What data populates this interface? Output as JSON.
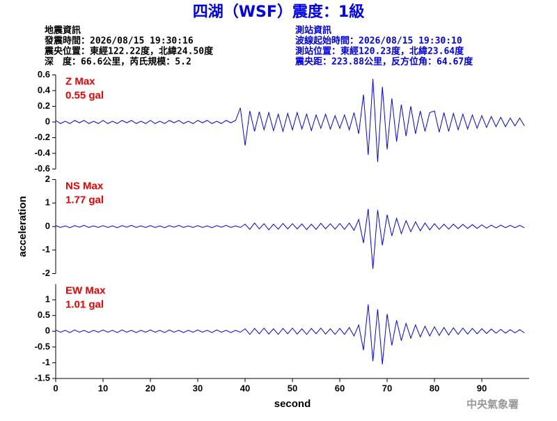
{
  "header": {
    "title": "四湖（WSF）震度：1級",
    "left": [
      "地震資訊",
      "發震時間：2026/08/15 19:30:16",
      "震央位置：東經122.22度，北緯24.50度",
      "深　度：66.6公里，芮氏規模：5.2"
    ],
    "right": [
      "測站資訊",
      "波線起始時間：2026/08/15 19:30:10",
      "測站位置：東經120.23度，北緯23.64度",
      "震央距：223.88公里，反方位角：64.67度"
    ]
  },
  "footer": "中央氣象署",
  "chart_data": [
    {
      "type": "line",
      "color": "#0000ff",
      "annotations": [
        "Z Max",
        "0.55 gal"
      ],
      "annotation_color": "#ee0000",
      "xlim": [
        0,
        100
      ],
      "ylim": [
        -0.6,
        0.6
      ],
      "yticks": [
        -0.6,
        -0.4,
        -0.2,
        0,
        0.2,
        0.4,
        0.6
      ],
      "x": [
        0,
        1,
        2,
        3,
        4,
        5,
        6,
        7,
        8,
        9,
        10,
        11,
        12,
        13,
        14,
        15,
        16,
        17,
        18,
        19,
        20,
        21,
        22,
        23,
        24,
        25,
        26,
        27,
        28,
        29,
        30,
        31,
        32,
        33,
        34,
        35,
        36,
        37,
        38,
        39,
        40,
        41,
        42,
        43,
        44,
        45,
        46,
        47,
        48,
        49,
        50,
        51,
        52,
        53,
        54,
        55,
        56,
        57,
        58,
        59,
        60,
        61,
        62,
        63,
        64,
        65,
        66,
        67,
        68,
        69,
        70,
        71,
        72,
        73,
        74,
        75,
        76,
        77,
        78,
        79,
        80,
        81,
        82,
        83,
        84,
        85,
        86,
        87,
        88,
        89,
        90,
        91,
        92,
        93,
        94,
        95,
        96,
        97,
        98,
        99
      ],
      "values": [
        0.02,
        -0.02,
        0.01,
        -0.02,
        0.02,
        -0.01,
        0.02,
        -0.02,
        0.01,
        -0.02,
        0.02,
        -0.02,
        0.01,
        -0.02,
        0.02,
        -0.01,
        0.02,
        -0.02,
        0.01,
        -0.02,
        0.02,
        -0.02,
        0.01,
        -0.02,
        0.02,
        -0.01,
        0.02,
        -0.02,
        0.01,
        -0.02,
        0.02,
        -0.01,
        0.02,
        -0.02,
        0.01,
        -0.02,
        0.02,
        -0.01,
        0.02,
        0.18,
        -0.3,
        0.14,
        -0.12,
        0.13,
        -0.1,
        0.12,
        -0.11,
        0.1,
        -0.12,
        0.11,
        -0.1,
        0.12,
        -0.09,
        0.1,
        -0.11,
        0.09,
        -0.08,
        0.1,
        -0.09,
        0.08,
        -0.08,
        0.09,
        -0.1,
        0.12,
        -0.15,
        0.35,
        -0.42,
        0.55,
        -0.51,
        0.45,
        -0.35,
        0.3,
        -0.25,
        0.22,
        -0.18,
        0.2,
        -0.15,
        0.14,
        -0.12,
        0.12,
        0.14,
        -0.13,
        0.12,
        -0.12,
        0.11,
        -0.1,
        0.1,
        -0.09,
        0.09,
        -0.08,
        0.08,
        -0.07,
        0.07,
        -0.06,
        0.06,
        -0.06,
        0.05,
        -0.05,
        0.05,
        -0.05
      ]
    },
    {
      "type": "line",
      "color": "#0000ff",
      "annotations": [
        "NS Max",
        "1.77 gal"
      ],
      "annotation_color": "#ee0000",
      "ylabel": "acceleration",
      "xlim": [
        0,
        100
      ],
      "ylim": [
        -2,
        2
      ],
      "yticks": [
        -2,
        -1,
        0,
        1,
        2
      ],
      "x": [
        0,
        1,
        2,
        3,
        4,
        5,
        6,
        7,
        8,
        9,
        10,
        11,
        12,
        13,
        14,
        15,
        16,
        17,
        18,
        19,
        20,
        21,
        22,
        23,
        24,
        25,
        26,
        27,
        28,
        29,
        30,
        31,
        32,
        33,
        34,
        35,
        36,
        37,
        38,
        39,
        40,
        41,
        42,
        43,
        44,
        45,
        46,
        47,
        48,
        49,
        50,
        51,
        52,
        53,
        54,
        55,
        56,
        57,
        58,
        59,
        60,
        61,
        62,
        63,
        64,
        65,
        66,
        67,
        68,
        69,
        70,
        71,
        72,
        73,
        74,
        75,
        76,
        77,
        78,
        79,
        80,
        81,
        82,
        83,
        84,
        85,
        86,
        87,
        88,
        89,
        90,
        91,
        92,
        93,
        94,
        95,
        96,
        97,
        98,
        99
      ],
      "values": [
        0.04,
        -0.04,
        0.03,
        -0.05,
        0.04,
        -0.03,
        0.05,
        -0.04,
        0.03,
        -0.04,
        0.04,
        -0.04,
        0.03,
        -0.05,
        0.04,
        -0.03,
        0.05,
        -0.04,
        0.03,
        -0.04,
        0.04,
        -0.04,
        0.03,
        -0.05,
        0.04,
        -0.03,
        0.05,
        -0.04,
        0.03,
        -0.04,
        0.04,
        -0.04,
        0.03,
        -0.05,
        0.04,
        -0.03,
        0.05,
        -0.04,
        0.03,
        -0.04,
        0.1,
        -0.12,
        0.15,
        -0.1,
        0.12,
        -0.14,
        0.1,
        -0.11,
        0.13,
        -0.1,
        0.12,
        -0.1,
        0.11,
        -0.13,
        0.1,
        -0.12,
        0.14,
        -0.1,
        0.12,
        -0.11,
        0.13,
        -0.12,
        0.15,
        -0.16,
        0.3,
        -0.7,
        0.75,
        -1.8,
        0.7,
        -0.8,
        0.5,
        -0.4,
        0.35,
        -0.3,
        0.25,
        -0.22,
        0.2,
        -0.18,
        0.15,
        -0.14,
        0.12,
        -0.12,
        0.1,
        -0.11,
        0.1,
        -0.09,
        0.09,
        -0.08,
        0.08,
        -0.08,
        0.07,
        -0.07,
        0.06,
        -0.06,
        0.06,
        -0.05,
        0.05,
        -0.05,
        0.05,
        -0.05
      ]
    },
    {
      "type": "line",
      "color": "#0000ff",
      "annotations": [
        "EW Max",
        "1.01 gal"
      ],
      "annotation_color": "#ee0000",
      "xlabel": "second",
      "xlim": [
        0,
        100
      ],
      "xticks": [
        0,
        10,
        20,
        30,
        40,
        50,
        60,
        70,
        80,
        90
      ],
      "ylim": [
        -1.5,
        1.5
      ],
      "yticks": [
        -1.5,
        -1,
        -0.5,
        0,
        0.5,
        1
      ],
      "x": [
        0,
        1,
        2,
        3,
        4,
        5,
        6,
        7,
        8,
        9,
        10,
        11,
        12,
        13,
        14,
        15,
        16,
        17,
        18,
        19,
        20,
        21,
        22,
        23,
        24,
        25,
        26,
        27,
        28,
        29,
        30,
        31,
        32,
        33,
        34,
        35,
        36,
        37,
        38,
        39,
        40,
        41,
        42,
        43,
        44,
        45,
        46,
        47,
        48,
        49,
        50,
        51,
        52,
        53,
        54,
        55,
        56,
        57,
        58,
        59,
        60,
        61,
        62,
        63,
        64,
        65,
        66,
        67,
        68,
        69,
        70,
        71,
        72,
        73,
        74,
        75,
        76,
        77,
        78,
        79,
        80,
        81,
        82,
        83,
        84,
        85,
        86,
        87,
        88,
        89,
        90,
        91,
        92,
        93,
        94,
        95,
        96,
        97,
        98,
        99
      ],
      "values": [
        0.04,
        -0.03,
        0.03,
        -0.04,
        0.04,
        -0.03,
        0.03,
        -0.04,
        0.03,
        -0.03,
        0.04,
        -0.03,
        0.03,
        -0.04,
        0.04,
        -0.03,
        0.03,
        -0.04,
        0.03,
        -0.03,
        0.04,
        -0.03,
        0.03,
        -0.04,
        0.04,
        -0.03,
        0.03,
        -0.04,
        0.03,
        -0.03,
        0.04,
        -0.03,
        0.03,
        -0.04,
        0.04,
        -0.03,
        0.03,
        -0.04,
        0.03,
        -0.03,
        0.08,
        -0.1,
        0.09,
        -0.08,
        0.1,
        -0.09,
        0.08,
        -0.1,
        0.09,
        -0.08,
        0.1,
        -0.09,
        0.08,
        -0.1,
        0.09,
        -0.08,
        0.1,
        -0.09,
        0.08,
        -0.1,
        0.09,
        -0.1,
        0.12,
        -0.15,
        0.2,
        -0.6,
        0.85,
        -0.95,
        0.7,
        -1.05,
        0.55,
        -0.45,
        0.35,
        -0.3,
        0.25,
        -0.22,
        0.2,
        -0.18,
        0.16,
        -0.15,
        0.14,
        -0.13,
        0.12,
        -0.12,
        0.11,
        -0.1,
        0.1,
        -0.09,
        0.09,
        -0.08,
        0.08,
        -0.07,
        0.07,
        -0.06,
        0.06,
        -0.06,
        0.05,
        -0.05,
        0.05,
        -0.05
      ]
    }
  ]
}
